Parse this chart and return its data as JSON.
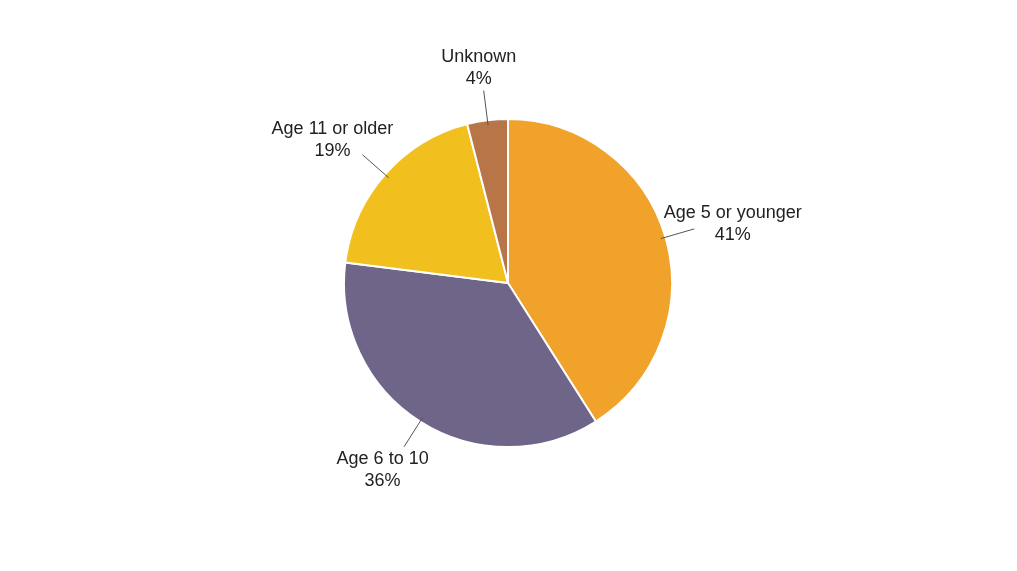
{
  "chart_data": {
    "type": "pie",
    "categories": [
      "Age 5 or younger",
      "Age 6 to 10",
      "Age 11 or older",
      "Unknown"
    ],
    "values": [
      41,
      36,
      19,
      4
    ],
    "value_labels": [
      "41%",
      "36%",
      "19%",
      "4%"
    ],
    "colors": [
      "#f0a22a",
      "#6f6589",
      "#f2c01e",
      "#b87548"
    ],
    "legend": false
  }
}
